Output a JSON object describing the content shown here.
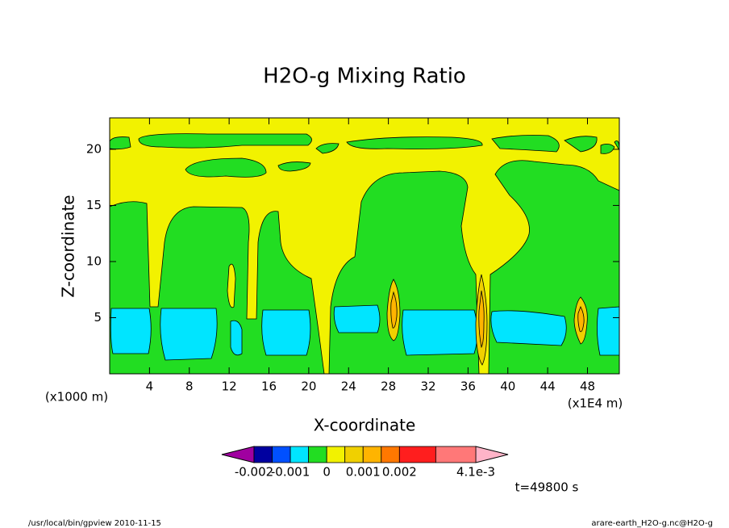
{
  "chart_data": {
    "type": "contour",
    "title": "H2O-g Mixing Ratio",
    "x_label": "X-coordinate",
    "y_label": "Z-coordinate",
    "x_unit_left": "(x1000 m)",
    "x_unit_right": "(x1E4 m)",
    "xlim": [
      0,
      51.2
    ],
    "ylim": [
      0,
      22.8
    ],
    "xticks": [
      4,
      8,
      12,
      16,
      20,
      24,
      28,
      32,
      36,
      40,
      44,
      48
    ],
    "yticks": [
      5,
      10,
      15,
      20
    ],
    "colorbar": {
      "levels": [
        -0.002,
        -0.0015,
        -0.001,
        -0.0005,
        0,
        0.0005,
        0.001,
        0.0015,
        0.002,
        0.003,
        0.0041
      ],
      "colors": [
        "#0000a0",
        "#0050ff",
        "#00e5ff",
        "#22dd22",
        "#f2f200",
        "#f0d000",
        "#ffb400",
        "#ff7800",
        "#ff1e1e",
        "#ff7878"
      ],
      "under_color": "#a000a0",
      "over_color": "#ffb4c8",
      "ticks": [
        -0.002,
        -0.001,
        0,
        0.001,
        0.002,
        {
          "value": 0.0041,
          "label": "4.1e-3"
        }
      ]
    },
    "time_label": "t=49800 s",
    "footer_left": "/usr/local/bin/gpview  2010-11-15",
    "footer_right": "arare-earth_H2O-g.nc@H2O-g"
  }
}
